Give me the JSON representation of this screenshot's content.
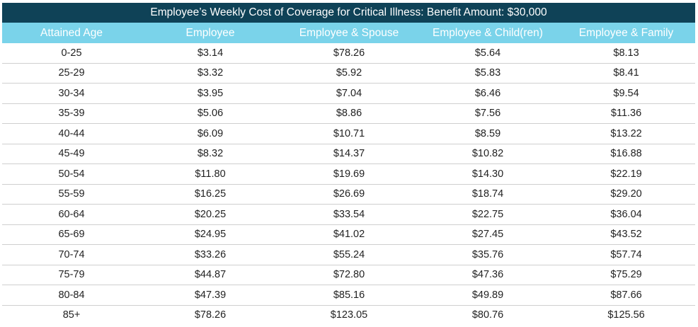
{
  "title": "Employee’s Weekly Cost of Coverage for Critical Illness: Benefit Amount: $30,000",
  "columns": [
    "Attained Age",
    "Employee",
    "Employee & Spouse",
    "Employee & Child(ren)",
    "Employee & Family"
  ],
  "rows": [
    [
      "0-25",
      "$3.14",
      "$78.26",
      "$5.64",
      "$8.13"
    ],
    [
      "25-29",
      "$3.32",
      "$5.92",
      "$5.83",
      "$8.41"
    ],
    [
      "30-34",
      "$3.95",
      "$7.04",
      "$6.46",
      "$9.54"
    ],
    [
      "35-39",
      "$5.06",
      "$8.86",
      "$7.56",
      "$11.36"
    ],
    [
      "40-44",
      "$6.09",
      "$10.71",
      "$8.59",
      "$13.22"
    ],
    [
      "45-49",
      "$8.32",
      "$14.37",
      "$10.82",
      "$16.88"
    ],
    [
      "50-54",
      "$11.80",
      "$19.69",
      "$14.30",
      "$22.19"
    ],
    [
      "55-59",
      "$16.25",
      "$26.69",
      "$18.74",
      "$29.20"
    ],
    [
      "60-64",
      "$20.25",
      "$33.54",
      "$22.75",
      "$36.04"
    ],
    [
      "65-69",
      "$24.95",
      "$41.02",
      "$27.45",
      "$43.52"
    ],
    [
      "70-74",
      "$33.26",
      "$55.24",
      "$35.76",
      "$57.74"
    ],
    [
      "75-79",
      "$44.87",
      "$72.80",
      "$47.36",
      "$75.29"
    ],
    [
      "80-84",
      "$47.39",
      "$85.16",
      "$49.89",
      "$87.66"
    ],
    [
      "85+",
      "$78.26",
      "$123.05",
      "$80.76",
      "$125.56"
    ]
  ],
  "colors": {
    "title_bg": "#0f4257",
    "header_bg": "#7ad3ea",
    "row_divider": "#cfcfcf"
  }
}
